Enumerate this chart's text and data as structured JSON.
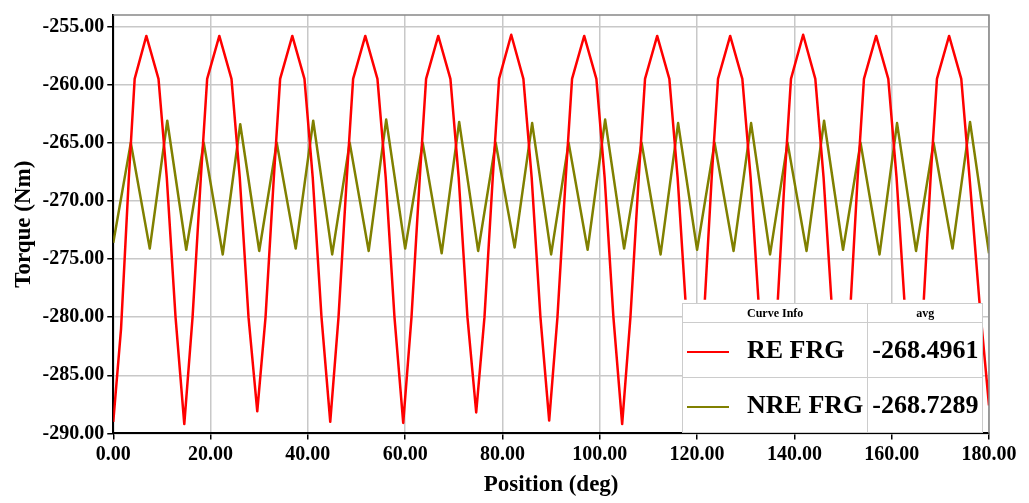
{
  "chart_data": {
    "type": "line",
    "xlabel": "Position (deg)",
    "ylabel": "Torque (Nm)",
    "xlim": [
      0,
      180
    ],
    "xticks": [
      {
        "value": 0,
        "label": "0.00"
      },
      {
        "value": 20,
        "label": "20.00"
      },
      {
        "value": 40,
        "label": "40.00"
      },
      {
        "value": 60,
        "label": "60.00"
      },
      {
        "value": 80,
        "label": "80.00"
      },
      {
        "value": 100,
        "label": "100.00"
      },
      {
        "value": 120,
        "label": "120.00"
      },
      {
        "value": 140,
        "label": "140.00"
      },
      {
        "value": 160,
        "label": "160.00"
      },
      {
        "value": 180,
        "label": "180.00"
      }
    ],
    "ylim": [
      -290,
      -254
    ],
    "yticks": [
      {
        "value": -290,
        "label": "-290.00"
      },
      {
        "value": -285,
        "label": "-285.00"
      },
      {
        "value": -280,
        "label": "-280.00"
      },
      {
        "value": -275,
        "label": "-275.00"
      },
      {
        "value": -270,
        "label": "-270.00"
      },
      {
        "value": -265,
        "label": "-265.00"
      },
      {
        "value": -260,
        "label": "-260.00"
      },
      {
        "value": -255,
        "label": "-255.00"
      }
    ],
    "grid": true,
    "legend": "bottom right",
    "legend_title": "Curve Info",
    "marker": "none",
    "line_style": "solid",
    "annotations": [
      "avg",
      "-268.4961",
      "-268.7289"
    ],
    "series": [
      {
        "name": "RE FRG",
        "color": "#ff0000",
        "x": [
          0,
          1.6,
          3.2,
          4.4,
          6.8,
          9.3,
          11,
          12.8,
          14.6,
          16.3,
          18,
          19.3,
          21.8,
          24.3,
          26,
          27.8,
          29.6,
          31.3,
          33,
          34.3,
          36.8,
          39.3,
          41,
          42.8,
          44.6,
          46.3,
          48,
          49.3,
          51.8,
          54.3,
          56,
          57.8,
          59.6,
          61.3,
          63,
          64.3,
          66.8,
          69.3,
          71,
          72.8,
          74.6,
          76.3,
          78,
          79.3,
          81.8,
          84.3,
          86,
          87.8,
          89.6,
          91.3,
          93,
          94.3,
          96.8,
          99.3,
          101,
          102.8,
          104.6,
          106.3,
          108,
          109.3,
          111.8,
          114.3,
          116,
          117.6,
          119.6,
          121.6,
          123,
          124.3,
          126.8,
          129.3,
          131,
          132.6,
          134.6,
          136.6,
          138,
          139.3,
          141.8,
          144.3,
          146,
          147.6,
          149.6,
          151.6,
          153,
          154.3,
          156.8,
          159.3,
          161,
          162.6,
          164.6,
          166.6,
          168,
          169.3,
          171.8,
          174.3,
          176,
          178,
          180
        ],
        "values": [
          -289.0,
          -281,
          -268,
          -259.5,
          -255.8,
          -259.5,
          -268,
          -280,
          -289.2,
          -280,
          -268,
          -259.5,
          -255.8,
          -259.5,
          -268,
          -280,
          -288.1,
          -280,
          -268,
          -259.5,
          -255.8,
          -259.5,
          -268,
          -280,
          -289.0,
          -280,
          -268,
          -259.5,
          -255.8,
          -259.5,
          -268,
          -280,
          -289.1,
          -280,
          -268,
          -259.5,
          -255.8,
          -259.5,
          -268,
          -280,
          -288.2,
          -280,
          -268,
          -259.5,
          -255.7,
          -259.5,
          -268,
          -280,
          -288.9,
          -280,
          -268,
          -259.5,
          -255.8,
          -259.5,
          -268,
          -280,
          -289.2,
          -280,
          -268,
          -259.5,
          -255.8,
          -259.5,
          -268,
          -278.5,
          null,
          -278.5,
          -268,
          -259.5,
          -255.8,
          -259.5,
          -268,
          -278.5,
          null,
          -278.5,
          -268,
          -259.5,
          -255.7,
          -259.5,
          -268,
          -278.5,
          null,
          -278.5,
          -268,
          -259.5,
          -255.8,
          -259.5,
          -268,
          -278.5,
          null,
          -278.5,
          -268,
          -259.5,
          -255.8,
          -259.5,
          -268,
          -278.5,
          -287.6
        ]
      },
      {
        "name": "NRE FRG",
        "color": "#808000",
        "x": [
          0,
          3.6,
          7.5,
          11.1,
          15,
          18.6,
          22.5,
          26.1,
          30,
          33.6,
          37.5,
          41.1,
          45,
          48.6,
          52.5,
          56.1,
          60,
          63.6,
          67.5,
          71.1,
          75,
          78.6,
          82.5,
          86.1,
          90,
          93.6,
          97.5,
          101.1,
          105,
          108.6,
          112.5,
          116.1,
          120,
          123.6,
          127.5,
          131.1,
          135,
          138.6,
          142.5,
          146.1,
          150,
          153.6,
          157.5,
          161.1,
          165,
          168.6,
          172.5,
          176.1,
          180
        ],
        "values": [
          -273.6,
          -265.0,
          -274.1,
          -263.1,
          -274.2,
          -265.0,
          -274.6,
          -263.4,
          -274.3,
          -265.0,
          -274.1,
          -263.1,
          -274.6,
          -265.0,
          -274.3,
          -263.0,
          -274.1,
          -265.0,
          -274.5,
          -263.2,
          -274.3,
          -265.0,
          -274.0,
          -263.3,
          -274.6,
          -265.0,
          -274.2,
          -263.0,
          -274.1,
          -265.0,
          -274.6,
          -263.3,
          -274.2,
          -265.0,
          -274.3,
          -263.3,
          -274.6,
          -265.0,
          -274.3,
          -263.1,
          -274.2,
          -265.0,
          -274.6,
          -263.3,
          -274.3,
          -265.0,
          -274.1,
          -263.2,
          -274.5
        ]
      }
    ]
  }
}
